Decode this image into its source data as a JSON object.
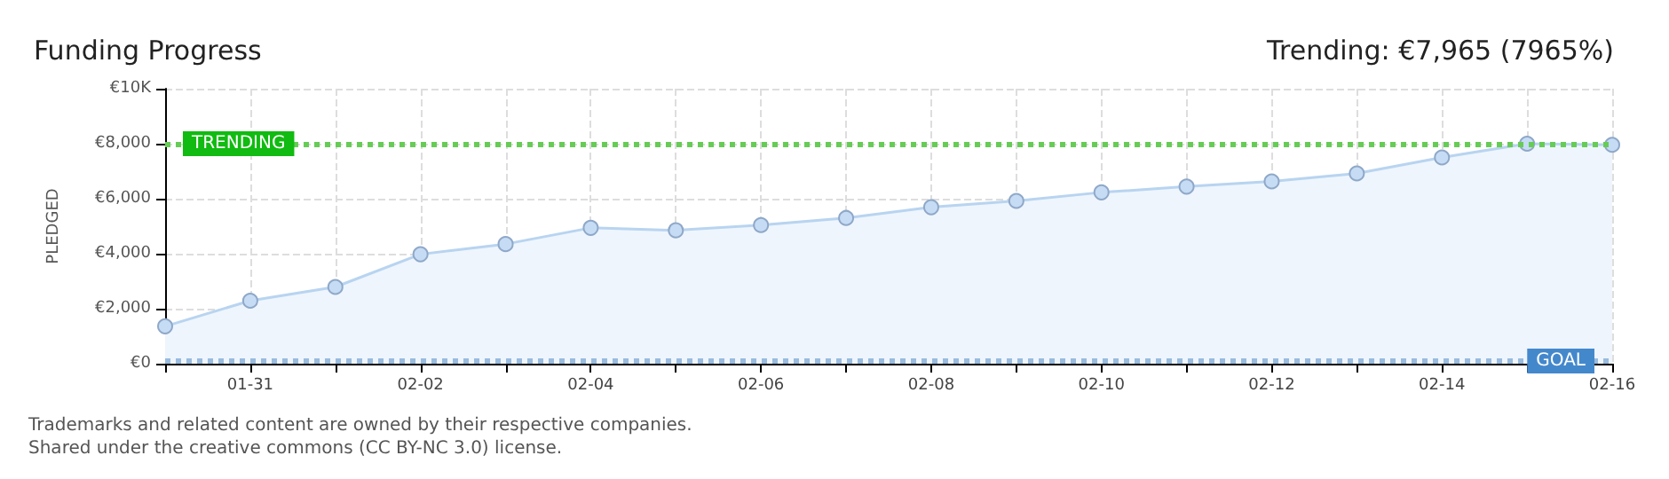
{
  "chart_data": {
    "type": "area",
    "title": "Funding Progress",
    "subtitle": "Trending: €7,965 (7965%)",
    "ylabel": "PLEDGED",
    "categories": [
      null,
      "01-31",
      null,
      "02-02",
      null,
      "02-04",
      null,
      "02-06",
      null,
      "02-08",
      null,
      "02-10",
      null,
      "02-12",
      null,
      "02-14",
      null,
      "02-16"
    ],
    "series": [
      {
        "color": "#b8d4f0",
        "values": [
          1360,
          2290,
          2790,
          3980,
          4350,
          4940,
          4850,
          5040,
          5300,
          5690,
          5920,
          6230,
          6440,
          6630,
          6920,
          7500,
          8000,
          7960
        ]
      }
    ],
    "ylim": [
      0,
      10000
    ],
    "yticks": [
      {
        "value": 0,
        "label": "€0"
      },
      {
        "value": 2000,
        "label": "€2,000"
      },
      {
        "value": 4000,
        "label": "€4,000"
      },
      {
        "value": 6000,
        "label": "€6,000"
      },
      {
        "value": 8000,
        "label": "€8,000"
      },
      {
        "value": 10000,
        "label": "€10K"
      }
    ],
    "ref_lines": [
      {
        "axis": "y",
        "value": 8000,
        "label": "TRENDING",
        "color": "#66cc55",
        "line_style": "dotted"
      },
      {
        "axis": "y",
        "value": 100,
        "label": "GOAL",
        "color": "#99bbdd",
        "line_style": "dotted"
      }
    ],
    "grid": true,
    "marker": "circle",
    "line_style": "solid",
    "annotations": [
      "Trademarks and related content are owned by their respective companies.",
      "Shared under the creative commons (CC BY-NC 3.0) license."
    ]
  }
}
